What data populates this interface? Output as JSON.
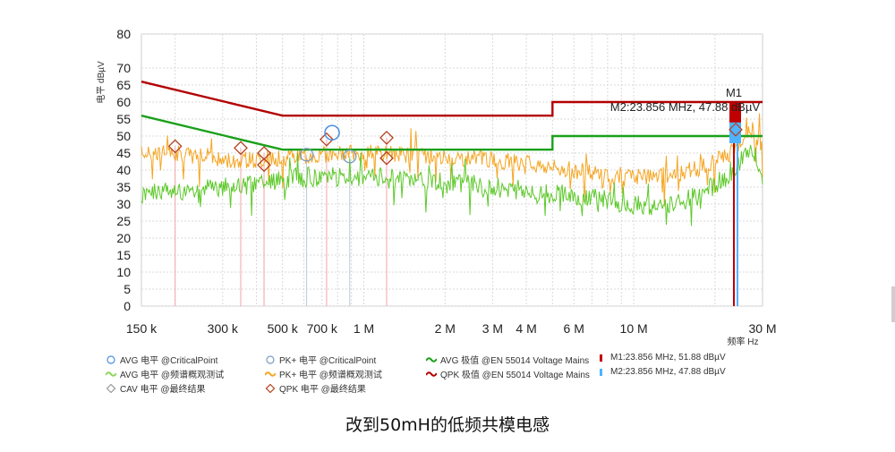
{
  "caption": "改到50mH的低频共模电感",
  "chart_data": {
    "type": "line",
    "x_scale": "log",
    "xlim_mhz": [
      0.15,
      30
    ],
    "ylim": [
      0,
      80
    ],
    "ylabel": "电平 dBµV",
    "xlabel": "频率 Hz",
    "grid": true,
    "y_ticks": [
      0,
      5,
      10,
      15,
      20,
      25,
      30,
      35,
      40,
      45,
      50,
      55,
      60,
      65,
      70,
      80
    ],
    "x_ticks": [
      {
        "mhz": 0.15,
        "label": "150 k"
      },
      {
        "mhz": 0.3,
        "label": "300 k"
      },
      {
        "mhz": 0.5,
        "label": "500 k"
      },
      {
        "mhz": 0.7,
        "label": "700 k"
      },
      {
        "mhz": 1,
        "label": "1 M"
      },
      {
        "mhz": 2,
        "label": "2 M"
      },
      {
        "mhz": 3,
        "label": "3 M"
      },
      {
        "mhz": 4,
        "label": "4 M"
      },
      {
        "mhz": 6,
        "label": "6 M"
      },
      {
        "mhz": 10,
        "label": "10 M"
      },
      {
        "mhz": 30,
        "label": "30 M"
      }
    ],
    "limits": [
      {
        "name": "QPK 极值 @EN 55014 Voltage Mains",
        "color": "#b30000",
        "points": [
          [
            0.15,
            66
          ],
          [
            0.5,
            56
          ],
          [
            5,
            56
          ],
          [
            5,
            60
          ],
          [
            30,
            60
          ]
        ]
      },
      {
        "name": "AVG 极值 @EN 55014 Voltage Mains",
        "color": "#1aa01a",
        "points": [
          [
            0.15,
            56
          ],
          [
            0.5,
            46
          ],
          [
            5,
            46
          ],
          [
            5,
            50
          ],
          [
            30,
            50
          ]
        ]
      }
    ],
    "spectra": [
      {
        "name": "PK+ 电平 @频谱概观测试",
        "color": "#f5a623",
        "points": [
          [
            0.15,
            45
          ],
          [
            0.2,
            45
          ],
          [
            0.3,
            43
          ],
          [
            0.4,
            43
          ],
          [
            0.6,
            44
          ],
          [
            0.8,
            45
          ],
          [
            1,
            45
          ],
          [
            1.5,
            44.5
          ],
          [
            2,
            44
          ],
          [
            3,
            43
          ],
          [
            4,
            42
          ],
          [
            6,
            40
          ],
          [
            8,
            39
          ],
          [
            10,
            38
          ],
          [
            14,
            38.5
          ],
          [
            18,
            41
          ],
          [
            22,
            44
          ],
          [
            25,
            48
          ],
          [
            27,
            51
          ],
          [
            28,
            52
          ],
          [
            29,
            49
          ],
          [
            30,
            45
          ]
        ]
      },
      {
        "name": "AVG 电平 @频谱概观测试",
        "color": "#5dc92a",
        "points": [
          [
            0.15,
            33
          ],
          [
            0.2,
            34
          ],
          [
            0.3,
            35
          ],
          [
            0.4,
            36
          ],
          [
            0.6,
            38
          ],
          [
            0.8,
            38
          ],
          [
            1,
            38
          ],
          [
            1.5,
            37
          ],
          [
            2,
            37
          ],
          [
            3,
            35
          ],
          [
            4,
            34
          ],
          [
            6,
            32.5
          ],
          [
            8,
            31
          ],
          [
            10,
            30
          ],
          [
            12,
            29
          ],
          [
            14,
            30
          ],
          [
            18,
            33
          ],
          [
            22,
            38
          ],
          [
            25,
            43
          ],
          [
            27,
            46
          ],
          [
            28,
            45
          ],
          [
            29,
            40
          ],
          [
            30,
            35
          ]
        ]
      }
    ],
    "critical_points": {
      "avg": [
        [
          0.763,
          51
        ]
      ],
      "pk": [
        [
          0.614,
          44.5
        ],
        [
          0.887,
          44
        ]
      ],
      "cav": [],
      "qpk": [
        [
          0.2,
          47
        ],
        [
          0.35,
          46.5
        ],
        [
          0.427,
          45
        ],
        [
          0.427,
          41.5
        ],
        [
          0.728,
          49
        ],
        [
          1.215,
          49.5
        ],
        [
          1.215,
          43.5
        ]
      ]
    },
    "markers": [
      {
        "name": "M1",
        "mhz": 23.856,
        "value": 51.88,
        "label": "M1:23.856 MHz, 51.88 dBµV",
        "color": "#c00000"
      },
      {
        "name": "M2",
        "mhz": 23.856,
        "value": 47.88,
        "label": "M2:23.856 MHz, 47.88 dBµV",
        "color": "#4fb3ff"
      }
    ],
    "marker_title": "M1",
    "marker_readout": "M2:23.856 MHz, 47.88 dBµV"
  },
  "legend": [
    {
      "text": "AVG 电平 @CriticalPoint",
      "symbol": "circle",
      "color": "#4a8fe0"
    },
    {
      "text": "PK+ 电平 @CriticalPoint",
      "symbol": "circle",
      "color": "#7a9bc4"
    },
    {
      "text": "AVG 极值 @EN 55014 Voltage Mains",
      "symbol": "wave",
      "color": "#1aa01a"
    },
    {
      "text": "M1:23.856 MHz, 51.88 dBµV",
      "symbol": "bar",
      "color": "#c00000"
    },
    {
      "text": "AVG 电平 @频谱概观测试",
      "symbol": "wave",
      "color": "#8bd65a"
    },
    {
      "text": "PK+ 电平 @频谱概观测试",
      "symbol": "wave",
      "color": "#f5a623"
    },
    {
      "text": "QPK 极值 @EN 55014 Voltage Mains",
      "symbol": "wave",
      "color": "#b30000"
    },
    {
      "text": "M2:23.856 MHz, 47.88 dBµV",
      "symbol": "bar",
      "color": "#4fb3ff"
    },
    {
      "text": "CAV 电平 @最终结果",
      "symbol": "diamond",
      "color": "#999999"
    },
    {
      "text": "QPK 电平 @最终结果",
      "symbol": "diamond",
      "color": "#b34020"
    }
  ]
}
